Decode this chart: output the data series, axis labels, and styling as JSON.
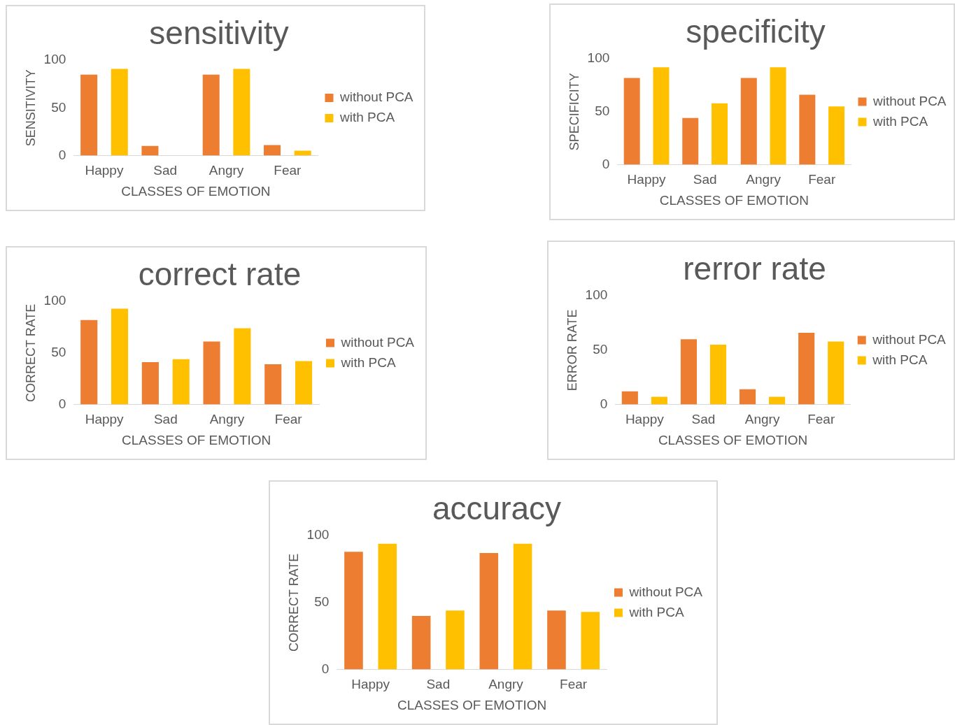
{
  "chart_data": [
    {
      "type": "bar",
      "title": "sensitivity",
      "xlabel": "CLASSES OF EMOTION",
      "ylabel": "SENSITIVITY",
      "categories": [
        "Happy",
        "Sad",
        "Angry",
        "Fear"
      ],
      "series": [
        {
          "name": "without PCA",
          "color": "#ed7d31",
          "values": [
            85,
            10,
            85,
            11
          ]
        },
        {
          "name": "with PCA",
          "color": "#ffc000",
          "values": [
            91,
            0,
            91,
            5
          ]
        }
      ],
      "ylim": [
        0,
        100
      ],
      "yticks": [
        0,
        50,
        100
      ],
      "grid": false,
      "legend": "right"
    },
    {
      "type": "bar",
      "title": "specificity",
      "xlabel": "CLASSES OF EMOTION",
      "ylabel": "SPECIFICITY",
      "categories": [
        "Happy",
        "Sad",
        "Angry",
        "Fear"
      ],
      "series": [
        {
          "name": "without PCA",
          "color": "#ed7d31",
          "values": [
            82,
            44,
            82,
            66
          ]
        },
        {
          "name": "with PCA",
          "color": "#ffc000",
          "values": [
            92,
            58,
            92,
            55
          ]
        }
      ],
      "ylim": [
        0,
        100
      ],
      "yticks": [
        0,
        50,
        100
      ],
      "grid": false,
      "legend": "right"
    },
    {
      "type": "bar",
      "title": "correct rate",
      "xlabel": "CLASSES OF EMOTION",
      "ylabel": "CORRECT RATE",
      "categories": [
        "Happy",
        "Sad",
        "Angry",
        "Fear"
      ],
      "series": [
        {
          "name": "without PCA",
          "color": "#ed7d31",
          "values": [
            82,
            41,
            61,
            39
          ]
        },
        {
          "name": "with PCA",
          "color": "#ffc000",
          "values": [
            93,
            44,
            74,
            42
          ]
        }
      ],
      "ylim": [
        0,
        100
      ],
      "yticks": [
        0,
        50,
        100
      ],
      "grid": false,
      "legend": "right"
    },
    {
      "type": "bar",
      "title": "rerror rate",
      "xlabel": "CLASSES OF EMOTION",
      "ylabel": "ERROR RATE",
      "categories": [
        "Happy",
        "Sad",
        "Angry",
        "Fear"
      ],
      "series": [
        {
          "name": "without PCA",
          "color": "#ed7d31",
          "values": [
            12,
            60,
            14,
            66
          ]
        },
        {
          "name": "with PCA",
          "color": "#ffc000",
          "values": [
            7,
            55,
            7,
            58
          ]
        }
      ],
      "ylim": [
        0,
        100
      ],
      "yticks": [
        0,
        50,
        100
      ],
      "grid": false,
      "legend": "right"
    },
    {
      "type": "bar",
      "title": "accuracy",
      "xlabel": "CLASSES OF EMOTION",
      "ylabel": "CORRECT RATE",
      "categories": [
        "Happy",
        "Sad",
        "Angry",
        "Fear"
      ],
      "series": [
        {
          "name": "without PCA",
          "color": "#ed7d31",
          "values": [
            88,
            40,
            87,
            44
          ]
        },
        {
          "name": "with PCA",
          "color": "#ffc000",
          "values": [
            94,
            44,
            94,
            43
          ]
        }
      ],
      "ylim": [
        0,
        100
      ],
      "yticks": [
        0,
        50,
        100
      ],
      "grid": false,
      "legend": "right"
    }
  ]
}
